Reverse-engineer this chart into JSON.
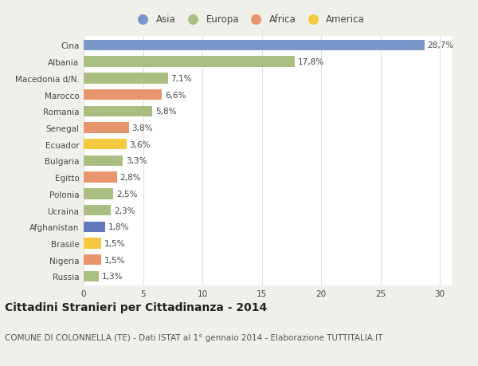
{
  "categories": [
    "Russia",
    "Nigeria",
    "Brasile",
    "Afghanistan",
    "Ucraina",
    "Polonia",
    "Egitto",
    "Bulgaria",
    "Ecuador",
    "Senegal",
    "Romania",
    "Marocco",
    "Macedonia d/N.",
    "Albania",
    "Cina"
  ],
  "values": [
    1.3,
    1.5,
    1.5,
    1.8,
    2.3,
    2.5,
    2.8,
    3.3,
    3.6,
    3.8,
    5.8,
    6.6,
    7.1,
    17.8,
    28.7
  ],
  "labels": [
    "1,3%",
    "1,5%",
    "1,5%",
    "1,8%",
    "2,3%",
    "2,5%",
    "2,8%",
    "3,3%",
    "3,6%",
    "3,8%",
    "5,8%",
    "6,6%",
    "7,1%",
    "17,8%",
    "28,7%"
  ],
  "colors": [
    "#abbe82",
    "#e8956d",
    "#f5c842",
    "#6478bb",
    "#abbe82",
    "#abbe82",
    "#e8956d",
    "#abbe82",
    "#f5c842",
    "#e8956d",
    "#abbe82",
    "#e8956d",
    "#abbe82",
    "#abbe82",
    "#7b96c8"
  ],
  "legend_labels": [
    "Asia",
    "Europa",
    "Africa",
    "America"
  ],
  "legend_colors": [
    "#7b96c8",
    "#abbe82",
    "#e8956d",
    "#f5c842"
  ],
  "title": "Cittadini Stranieri per Cittadinanza - 2014",
  "subtitle": "COMUNE DI COLONNELLA (TE) - Dati ISTAT al 1° gennaio 2014 - Elaborazione TUTTITALIA.IT",
  "xlim": [
    0,
    31
  ],
  "xticks": [
    0,
    5,
    10,
    15,
    20,
    25,
    30
  ],
  "background_color": "#f0f0eb",
  "plot_bg_color": "#ffffff",
  "bar_height": 0.65,
  "grid_color": "#e0e0e0",
  "label_fontsize": 7.5,
  "tick_fontsize": 7.5,
  "title_fontsize": 10,
  "subtitle_fontsize": 7.5
}
